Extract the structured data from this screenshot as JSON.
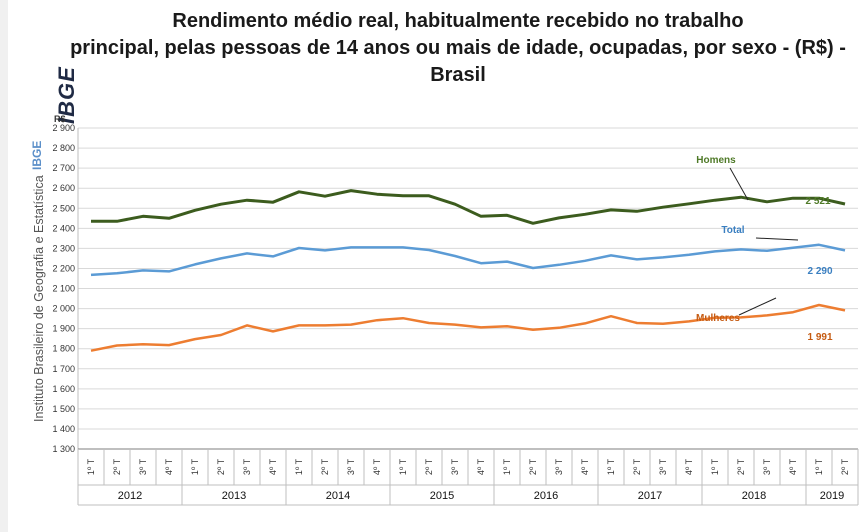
{
  "title_lines": [
    "Rendimento médio real, habitualmente recebido no trabalho",
    "principal, pelas pessoas de 14 anos ou mais de idade, ocupadas, por sexo - (R$) -",
    "Brasil"
  ],
  "logo": "IBGE",
  "sidebar_text": {
    "ibge": "IBGE",
    "institute": "Instituto Brasileiro de Geografia e Estatística"
  },
  "colors": {
    "homens": "#3c5c1e",
    "total": "#5b9bd5",
    "mulheres": "#ed7d31",
    "homens_label": "#4f7a28",
    "total_label": "#3a7fc1",
    "mulheres_label": "#c55a11"
  },
  "chart_data": {
    "type": "line",
    "ylabel": "R$",
    "ylim": [
      1300,
      2900
    ],
    "yticks": [
      "1 300",
      "1 400",
      "1 500",
      "1 600",
      "1 700",
      "1 800",
      "1 900",
      "2 000",
      "2 100",
      "2 200",
      "2 300",
      "2 400",
      "2 500",
      "2 600",
      "2 700",
      "2 800",
      "2 900"
    ],
    "quarter_labels": [
      "1º T",
      "2º T",
      "3º T",
      "4º T",
      "1º T",
      "2º T",
      "3º T",
      "4º T",
      "1º T",
      "2º T",
      "3º T",
      "4º T",
      "1º T",
      "2º T",
      "3º T",
      "4º T",
      "1º T",
      "2º T",
      "3º T",
      "4º T",
      "1º T",
      "2º T",
      "3º T",
      "4º T",
      "1º T",
      "2º T",
      "3º T",
      "4º T",
      "1º T",
      "2º T"
    ],
    "years": [
      {
        "label": "2012",
        "count": 4
      },
      {
        "label": "2013",
        "count": 4
      },
      {
        "label": "2014",
        "count": 4
      },
      {
        "label": "2015",
        "count": 4
      },
      {
        "label": "2016",
        "count": 4
      },
      {
        "label": "2017",
        "count": 4
      },
      {
        "label": "2018",
        "count": 4
      },
      {
        "label": "2019",
        "count": 2
      }
    ],
    "series": [
      {
        "name": "Homens",
        "values": [
          2435,
          2435,
          2460,
          2450,
          2490,
          2520,
          2540,
          2530,
          2582,
          2560,
          2588,
          2570,
          2562,
          2562,
          2520,
          2460,
          2465,
          2425,
          2452,
          2470,
          2492,
          2485,
          2505,
          2522,
          2540,
          2555,
          2532,
          2550,
          2550,
          2521
        ],
        "end_label": "2 521"
      },
      {
        "name": "Total",
        "values": [
          2168,
          2176,
          2190,
          2185,
          2220,
          2250,
          2275,
          2260,
          2302,
          2290,
          2305,
          2305,
          2305,
          2292,
          2262,
          2226,
          2234,
          2202,
          2218,
          2238,
          2265,
          2245,
          2255,
          2268,
          2285,
          2295,
          2288,
          2303,
          2318,
          2290
        ],
        "end_label": "2 290"
      },
      {
        "name": "Mulheres",
        "values": [
          1790,
          1816,
          1822,
          1818,
          1848,
          1868,
          1916,
          1886,
          1916,
          1916,
          1920,
          1942,
          1952,
          1928,
          1920,
          1906,
          1912,
          1894,
          1904,
          1926,
          1962,
          1928,
          1924,
          1936,
          1954,
          1956,
          1966,
          1982,
          2018,
          1991
        ],
        "end_label": "1 991"
      }
    ]
  }
}
